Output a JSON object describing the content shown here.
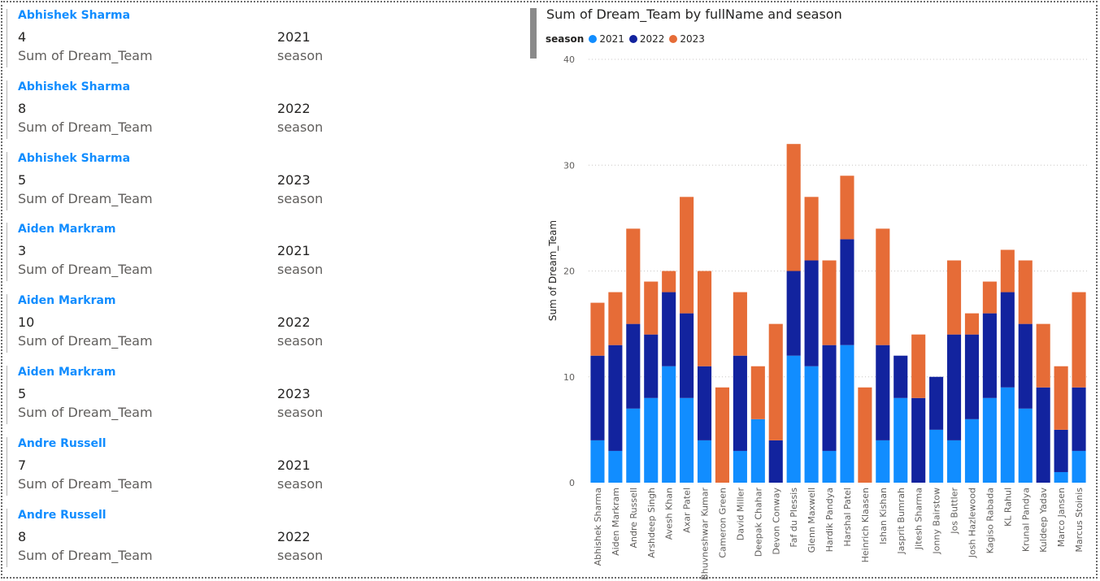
{
  "cards": [
    {
      "name": "Abhishek Sharma",
      "value": "4",
      "value_label": "Sum of Dream_Team",
      "season": "2021",
      "season_label": "season"
    },
    {
      "name": "Abhishek Sharma",
      "value": "8",
      "value_label": "Sum of Dream_Team",
      "season": "2022",
      "season_label": "season"
    },
    {
      "name": "Abhishek Sharma",
      "value": "5",
      "value_label": "Sum of Dream_Team",
      "season": "2023",
      "season_label": "season"
    },
    {
      "name": "Aiden Markram",
      "value": "3",
      "value_label": "Sum of Dream_Team",
      "season": "2021",
      "season_label": "season"
    },
    {
      "name": "Aiden Markram",
      "value": "10",
      "value_label": "Sum of Dream_Team",
      "season": "2022",
      "season_label": "season"
    },
    {
      "name": "Aiden Markram",
      "value": "5",
      "value_label": "Sum of Dream_Team",
      "season": "2023",
      "season_label": "season"
    },
    {
      "name": "Andre Russell",
      "value": "7",
      "value_label": "Sum of Dream_Team",
      "season": "2021",
      "season_label": "season"
    },
    {
      "name": "Andre Russell",
      "value": "8",
      "value_label": "Sum of Dream_Team",
      "season": "2022",
      "season_label": "season"
    }
  ],
  "chart_data": {
    "type": "bar",
    "stacked": true,
    "title": "Sum of Dream_Team by fullName and season",
    "legend_title": "season",
    "legend_position": "top-left",
    "xlabel": "",
    "ylabel": "Sum of Dream_Team",
    "ylim": [
      0,
      40
    ],
    "yticks": [
      0,
      10,
      20,
      30,
      40
    ],
    "grid": true,
    "categories": [
      "Abhishek Sharma",
      "Aiden Markram",
      "Andre Russell",
      "Arshdeep Singh",
      "Avesh Khan",
      "Axar Patel",
      "Bhuvneshwar Kumar",
      "Cameron Green",
      "David Miller",
      "Deepak Chahar",
      "Devon Conway",
      "Faf du Plessis",
      "Glenn Maxwell",
      "Hardik Pandya",
      "Harshal Patel",
      "Heinrich Klaasen",
      "Ishan Kishan",
      "Jasprit Bumrah",
      "Jitesh Sharma",
      "Jonny Bairstow",
      "Jos Buttler",
      "Josh Hazlewood",
      "Kagiso Rabada",
      "KL Rahul",
      "Krunal Pandya",
      "Kuldeep Yadav",
      "Marco Jansen",
      "Marcus Stoinis"
    ],
    "series": [
      {
        "name": "2021",
        "color": "#118dff",
        "values": [
          4,
          3,
          7,
          8,
          11,
          8,
          4,
          0,
          3,
          6,
          0,
          12,
          11,
          3,
          13,
          0,
          4,
          8,
          0,
          5,
          4,
          6,
          8,
          9,
          7,
          0,
          1,
          3
        ]
      },
      {
        "name": "2022",
        "color": "#12239e",
        "values": [
          8,
          10,
          8,
          6,
          7,
          8,
          7,
          0,
          9,
          0,
          4,
          8,
          10,
          10,
          10,
          0,
          9,
          4,
          8,
          5,
          10,
          8,
          8,
          9,
          8,
          9,
          4,
          6
        ]
      },
      {
        "name": "2023",
        "color": "#e66c37",
        "values": [
          5,
          5,
          9,
          5,
          2,
          11,
          9,
          9,
          6,
          5,
          11,
          12,
          6,
          8,
          6,
          9,
          11,
          0,
          6,
          0,
          7,
          2,
          3,
          4,
          6,
          6,
          6,
          9
        ]
      }
    ]
  }
}
